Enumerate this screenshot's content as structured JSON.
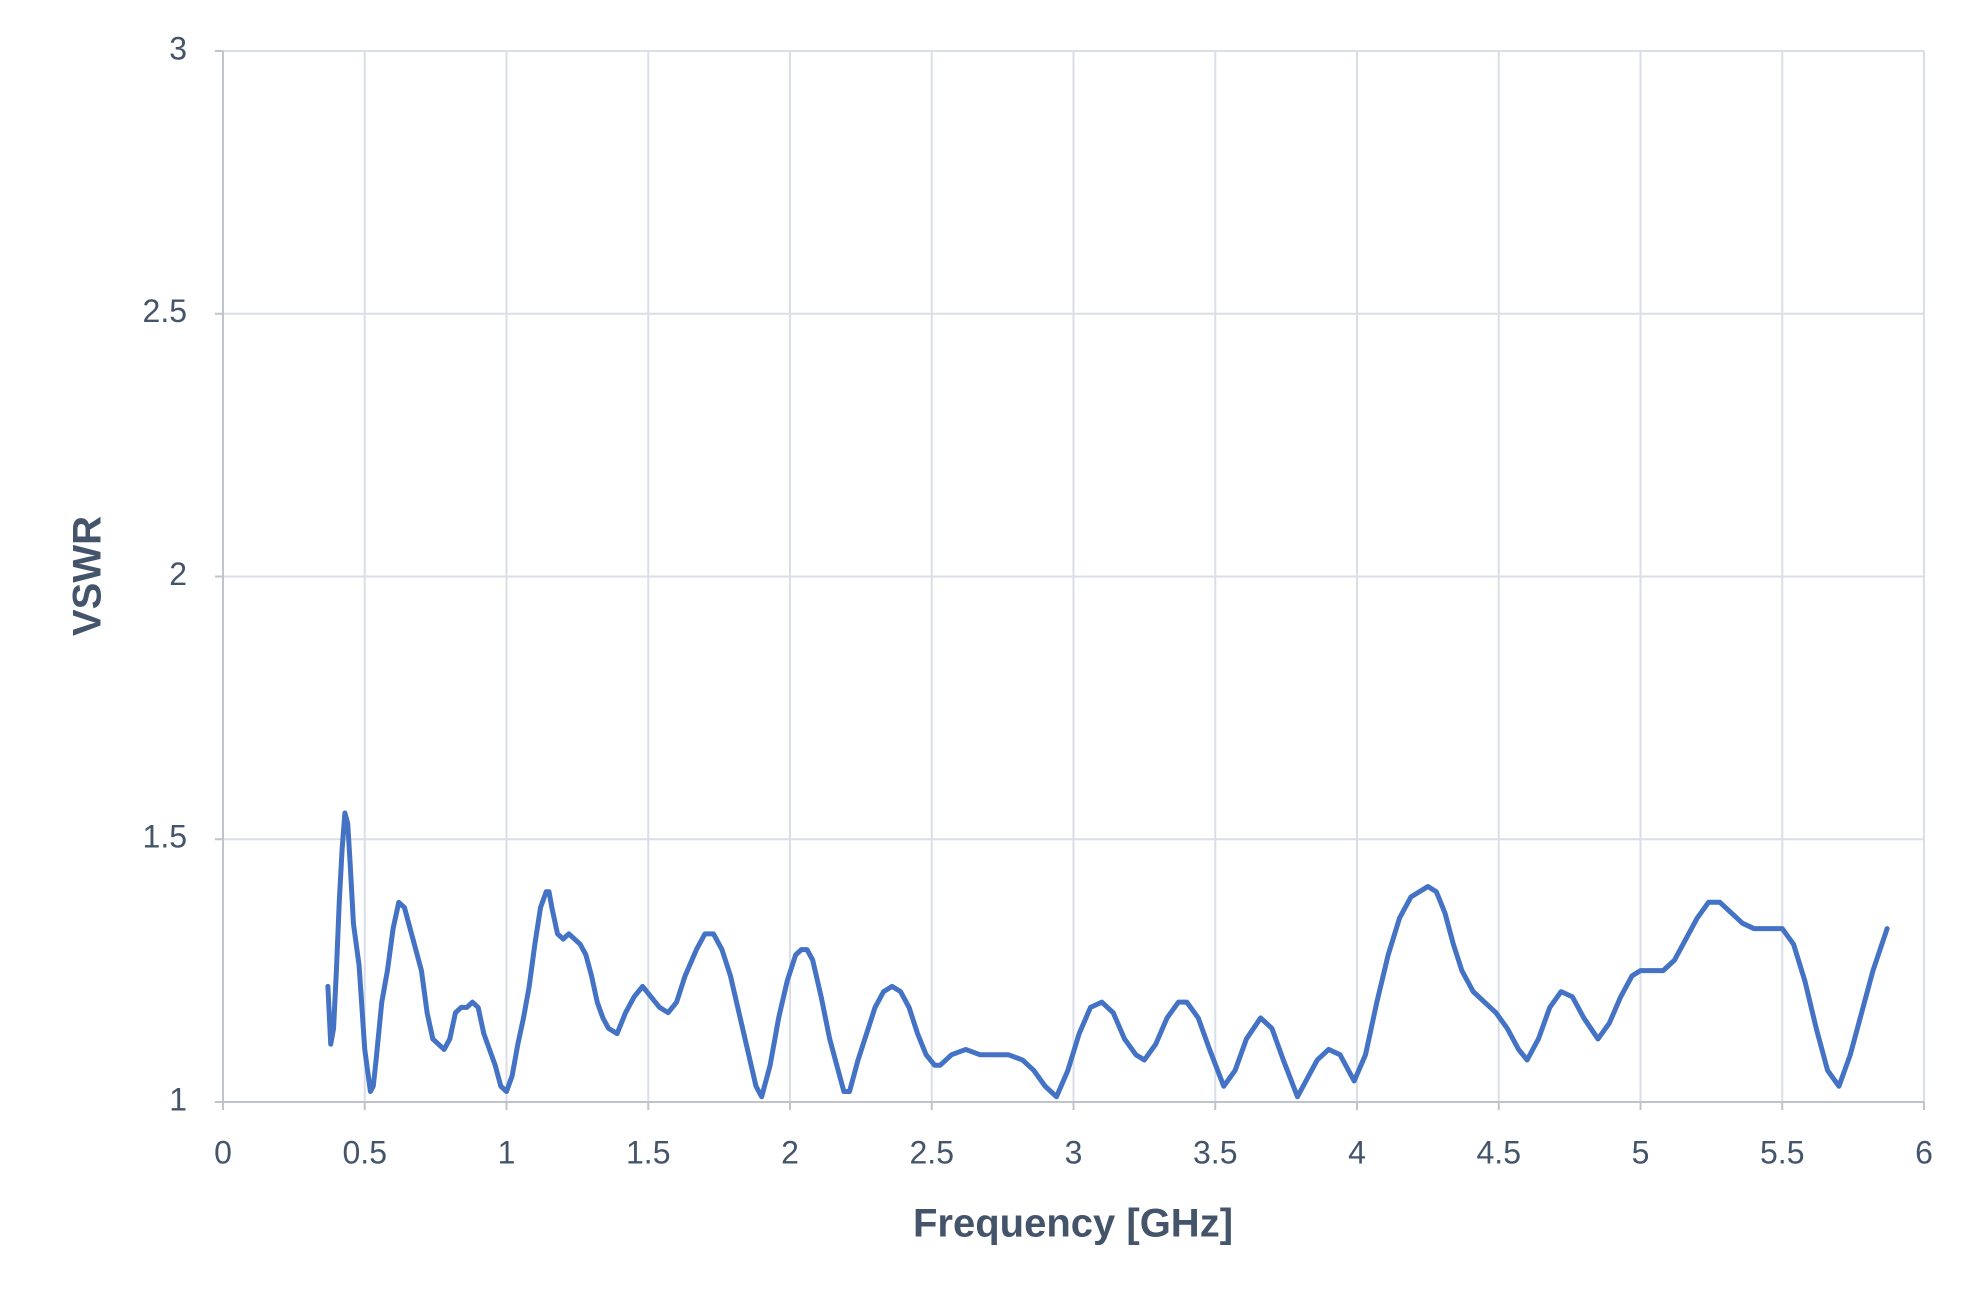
{
  "chart_data": {
    "type": "line",
    "x_label": "Frequency [GHz]",
    "y_label": "VSWR",
    "xlim": [
      0,
      6
    ],
    "xticks": [
      0,
      0.5,
      1,
      1.5,
      2,
      2.5,
      3,
      3.5,
      4,
      4.5,
      5,
      5.5,
      6
    ],
    "ylim": [
      1,
      3
    ],
    "yticks": [
      1,
      1.5,
      2,
      2.5,
      3
    ],
    "grid": true,
    "x": [
      0.37,
      0.38,
      0.39,
      0.4,
      0.41,
      0.42,
      0.43,
      0.44,
      0.45,
      0.46,
      0.48,
      0.5,
      0.52,
      0.53,
      0.54,
      0.56,
      0.58,
      0.6,
      0.62,
      0.64,
      0.66,
      0.68,
      0.7,
      0.72,
      0.74,
      0.76,
      0.78,
      0.8,
      0.82,
      0.84,
      0.86,
      0.88,
      0.9,
      0.92,
      0.94,
      0.96,
      0.98,
      1.0,
      1.02,
      1.04,
      1.06,
      1.08,
      1.1,
      1.12,
      1.14,
      1.15,
      1.16,
      1.18,
      1.2,
      1.22,
      1.24,
      1.26,
      1.28,
      1.3,
      1.32,
      1.34,
      1.36,
      1.39,
      1.42,
      1.45,
      1.48,
      1.51,
      1.54,
      1.57,
      1.6,
      1.63,
      1.67,
      1.7,
      1.73,
      1.76,
      1.79,
      1.82,
      1.85,
      1.88,
      1.9,
      1.93,
      1.96,
      1.99,
      2.02,
      2.04,
      2.06,
      2.08,
      2.11,
      2.14,
      2.17,
      2.19,
      2.21,
      2.24,
      2.27,
      2.3,
      2.33,
      2.36,
      2.39,
      2.42,
      2.45,
      2.48,
      2.51,
      2.53,
      2.57,
      2.62,
      2.67,
      2.72,
      2.77,
      2.82,
      2.86,
      2.9,
      2.94,
      2.98,
      3.02,
      3.06,
      3.1,
      3.14,
      3.18,
      3.22,
      3.25,
      3.29,
      3.33,
      3.37,
      3.4,
      3.44,
      3.48,
      3.53,
      3.57,
      3.61,
      3.66,
      3.7,
      3.74,
      3.79,
      3.82,
      3.86,
      3.9,
      3.94,
      3.99,
      4.03,
      4.07,
      4.11,
      4.15,
      4.19,
      4.22,
      4.25,
      4.28,
      4.31,
      4.34,
      4.37,
      4.41,
      4.45,
      4.49,
      4.53,
      4.57,
      4.6,
      4.64,
      4.68,
      4.72,
      4.76,
      4.8,
      4.85,
      4.89,
      4.93,
      4.97,
      5.0,
      5.04,
      5.08,
      5.12,
      5.16,
      5.2,
      5.24,
      5.28,
      5.32,
      5.36,
      5.4,
      5.45,
      5.5,
      5.54,
      5.58,
      5.62,
      5.66,
      5.7,
      5.74,
      5.78,
      5.82,
      5.87
    ],
    "series": [
      {
        "name": "VSWR",
        "color": "#4472c4",
        "values": [
          1.22,
          1.11,
          1.14,
          1.25,
          1.38,
          1.48,
          1.55,
          1.53,
          1.44,
          1.34,
          1.26,
          1.1,
          1.02,
          1.03,
          1.08,
          1.19,
          1.25,
          1.33,
          1.38,
          1.37,
          1.33,
          1.29,
          1.25,
          1.17,
          1.12,
          1.11,
          1.1,
          1.12,
          1.17,
          1.18,
          1.18,
          1.19,
          1.18,
          1.13,
          1.1,
          1.07,
          1.03,
          1.02,
          1.05,
          1.11,
          1.16,
          1.22,
          1.3,
          1.37,
          1.4,
          1.4,
          1.37,
          1.32,
          1.31,
          1.32,
          1.31,
          1.3,
          1.28,
          1.24,
          1.19,
          1.16,
          1.14,
          1.13,
          1.17,
          1.2,
          1.22,
          1.2,
          1.18,
          1.17,
          1.19,
          1.24,
          1.29,
          1.32,
          1.32,
          1.29,
          1.24,
          1.17,
          1.1,
          1.03,
          1.01,
          1.07,
          1.16,
          1.23,
          1.28,
          1.29,
          1.29,
          1.27,
          1.2,
          1.12,
          1.06,
          1.02,
          1.02,
          1.08,
          1.13,
          1.18,
          1.21,
          1.22,
          1.21,
          1.18,
          1.13,
          1.09,
          1.07,
          1.07,
          1.09,
          1.1,
          1.09,
          1.09,
          1.09,
          1.08,
          1.06,
          1.03,
          1.01,
          1.06,
          1.13,
          1.18,
          1.19,
          1.17,
          1.12,
          1.09,
          1.08,
          1.11,
          1.16,
          1.19,
          1.19,
          1.16,
          1.1,
          1.03,
          1.06,
          1.12,
          1.16,
          1.14,
          1.08,
          1.01,
          1.04,
          1.08,
          1.1,
          1.09,
          1.04,
          1.09,
          1.19,
          1.28,
          1.35,
          1.39,
          1.4,
          1.41,
          1.4,
          1.36,
          1.3,
          1.25,
          1.21,
          1.19,
          1.17,
          1.14,
          1.1,
          1.08,
          1.12,
          1.18,
          1.21,
          1.2,
          1.16,
          1.12,
          1.15,
          1.2,
          1.24,
          1.25,
          1.25,
          1.25,
          1.27,
          1.31,
          1.35,
          1.38,
          1.38,
          1.36,
          1.34,
          1.33,
          1.33,
          1.33,
          1.3,
          1.23,
          1.14,
          1.06,
          1.03,
          1.09,
          1.17,
          1.25,
          1.33
        ]
      }
    ]
  }
}
